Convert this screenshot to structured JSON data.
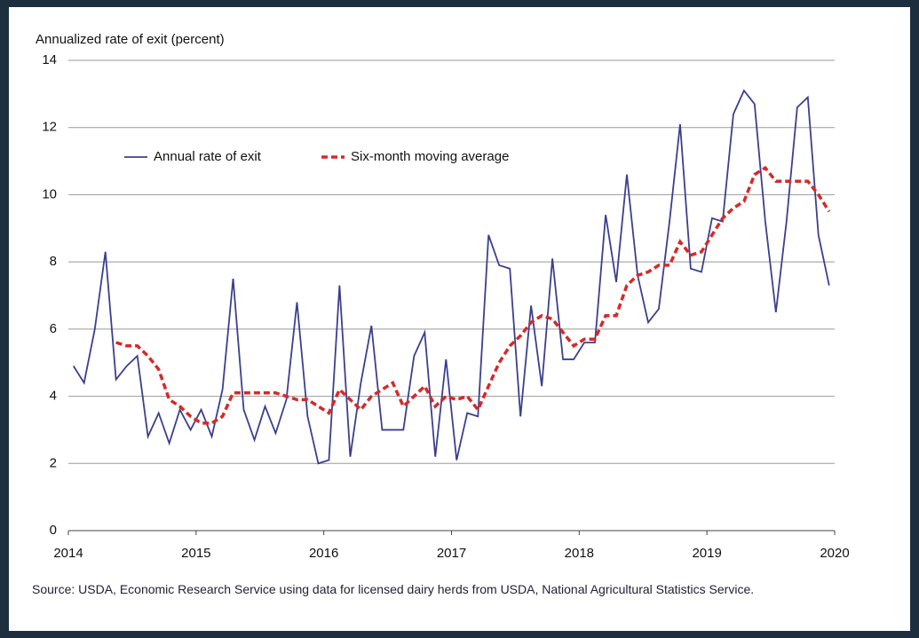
{
  "chart_data": {
    "type": "line",
    "ylabel": "Annualized rate of exit (percent)",
    "source": "Source: USDA, Economic Research Service using data for licensed dairy herds from USDA, National Agricultural Statistics Service.",
    "x": [
      2014.04,
      2014.123,
      2014.207,
      2014.29,
      2014.373,
      2014.457,
      2014.54,
      2014.623,
      2014.707,
      2014.79,
      2014.873,
      2014.957,
      2015.04,
      2015.123,
      2015.207,
      2015.29,
      2015.373,
      2015.457,
      2015.54,
      2015.623,
      2015.707,
      2015.79,
      2015.873,
      2015.957,
      2016.04,
      2016.123,
      2016.207,
      2016.29,
      2016.373,
      2016.457,
      2016.54,
      2016.623,
      2016.707,
      2016.79,
      2016.873,
      2016.957,
      2017.04,
      2017.123,
      2017.207,
      2017.29,
      2017.373,
      2017.457,
      2017.54,
      2017.623,
      2017.707,
      2017.79,
      2017.873,
      2017.957,
      2018.04,
      2018.123,
      2018.207,
      2018.29,
      2018.373,
      2018.457,
      2018.54,
      2018.623,
      2018.707,
      2018.79,
      2018.873,
      2018.957,
      2019.04,
      2019.123,
      2019.207,
      2019.29,
      2019.373,
      2019.457,
      2019.54,
      2019.623,
      2019.707,
      2019.79,
      2019.873,
      2019.957
    ],
    "series": [
      {
        "name": "Annual rate of exit",
        "color": "#3b3f8f",
        "style": "solid",
        "values": [
          4.9,
          4.4,
          6.0,
          8.3,
          4.5,
          4.9,
          5.2,
          2.8,
          3.5,
          2.6,
          3.6,
          3.0,
          3.6,
          2.8,
          4.2,
          7.5,
          3.6,
          2.7,
          3.7,
          2.9,
          3.9,
          6.8,
          3.4,
          2.0,
          2.1,
          7.3,
          2.2,
          4.4,
          6.1,
          3.0,
          3.0,
          3.0,
          5.2,
          5.9,
          2.2,
          5.1,
          2.1,
          3.5,
          3.4,
          8.8,
          7.9,
          7.8,
          3.4,
          6.7,
          4.3,
          8.1,
          5.1,
          5.1,
          5.6,
          5.6,
          9.4,
          7.4,
          10.6,
          7.6,
          6.2,
          6.6,
          9.2,
          12.1,
          7.8,
          7.7,
          9.3,
          9.2,
          12.4,
          13.1,
          12.7,
          9.2,
          6.5,
          9.2,
          12.6,
          12.9,
          8.8,
          7.3
        ]
      },
      {
        "name": "Six-month moving average",
        "color": "#d42a2a",
        "style": "dashed",
        "values": [
          null,
          null,
          null,
          null,
          5.6,
          5.5,
          5.5,
          5.2,
          4.8,
          3.9,
          3.7,
          3.4,
          3.2,
          3.2,
          3.4,
          4.1,
          4.1,
          4.1,
          4.1,
          4.1,
          4.0,
          3.9,
          3.9,
          3.7,
          3.5,
          4.2,
          3.9,
          3.6,
          4.0,
          4.2,
          4.4,
          3.7,
          4.0,
          4.3,
          3.7,
          4.0,
          3.9,
          4.0,
          3.6,
          4.3,
          5.0,
          5.5,
          5.8,
          6.2,
          6.4,
          6.3,
          5.9,
          5.5,
          5.7,
          5.7,
          6.4,
          6.4,
          7.3,
          7.6,
          7.7,
          7.9,
          7.9,
          8.6,
          8.2,
          8.3,
          8.8,
          9.3,
          9.6,
          9.8,
          10.6,
          10.8,
          10.4,
          10.4,
          10.4,
          10.4,
          10.0,
          9.5
        ]
      }
    ],
    "xlim": [
      2014,
      2020
    ],
    "xticks": [
      2014,
      2015,
      2016,
      2017,
      2018,
      2019,
      2020
    ],
    "ylim": [
      0,
      14
    ],
    "yticks": [
      0,
      2,
      4,
      6,
      8,
      10,
      12,
      14
    ],
    "grid": true,
    "legend": "upper left"
  }
}
